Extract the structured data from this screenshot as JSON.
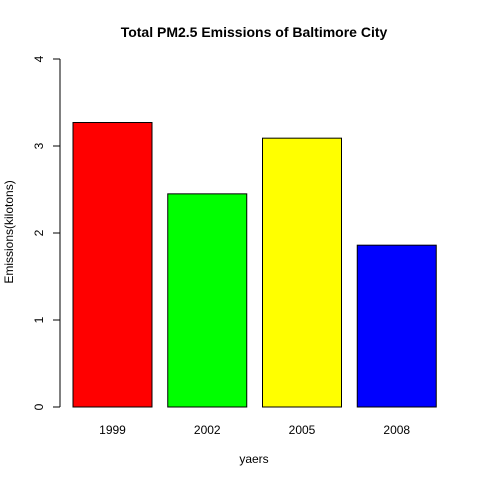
{
  "chart_data": {
    "type": "bar",
    "title": "Total PM2.5 Emissions of Baltimore City",
    "xlabel": "yaers",
    "ylabel": "Emissions(kilotons)",
    "categories": [
      "1999",
      "2002",
      "2005",
      "2008"
    ],
    "values": [
      3.27,
      2.45,
      3.09,
      1.86
    ],
    "colors": [
      "#ff0000",
      "#00ff00",
      "#ffff00",
      "#0000ff"
    ],
    "ylim": [
      0,
      4
    ],
    "yticks": [
      "0",
      "1",
      "2",
      "3",
      "4"
    ],
    "grid": false,
    "legend": "none"
  }
}
